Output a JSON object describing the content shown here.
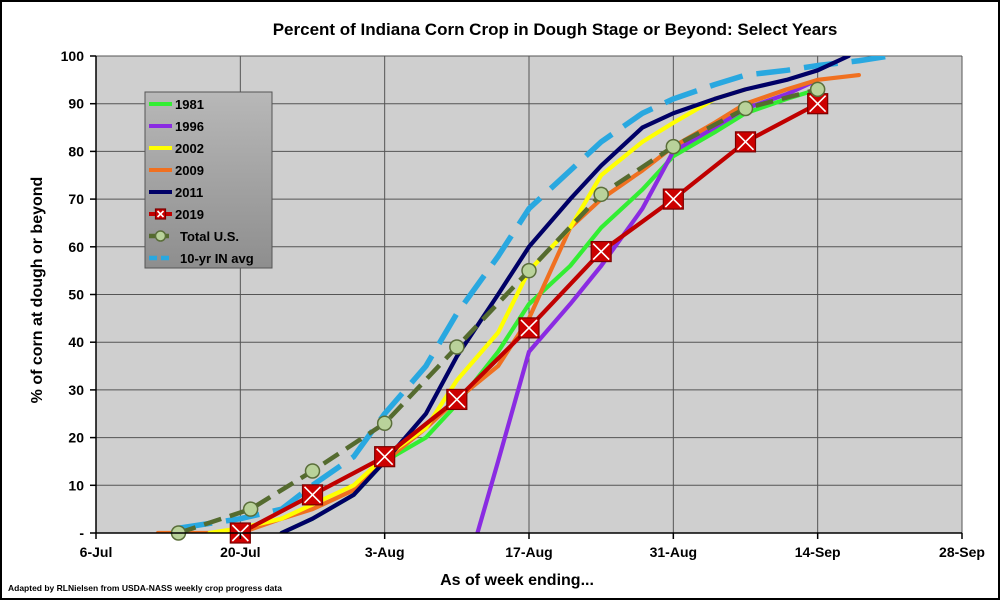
{
  "chart_data": {
    "type": "line",
    "title": "Percent of Indiana Corn Crop in Dough Stage or Beyond: Select Years",
    "xlabel": "As of week ending...",
    "ylabel": "% of corn at dough or beyond",
    "source_note": "Adapted by RLNielsen from USDA-NASS weekly crop progress data",
    "x_unit": "day of year",
    "x_ticks": [
      {
        "x": 187,
        "label": "6-Jul"
      },
      {
        "x": 201,
        "label": "20-Jul"
      },
      {
        "x": 215,
        "label": "3-Aug"
      },
      {
        "x": 229,
        "label": "17-Aug"
      },
      {
        "x": 243,
        "label": "31-Aug"
      },
      {
        "x": 257,
        "label": "14-Sep"
      },
      {
        "x": 271,
        "label": "28-Sep"
      }
    ],
    "xlim": [
      187,
      271
    ],
    "ylim": [
      0,
      100
    ],
    "y_ticks": [
      {
        "y": 0,
        "label": "-"
      },
      {
        "y": 10,
        "label": "10"
      },
      {
        "y": 20,
        "label": "20"
      },
      {
        "y": 30,
        "label": "30"
      },
      {
        "y": 40,
        "label": "40"
      },
      {
        "y": 50,
        "label": "50"
      },
      {
        "y": 60,
        "label": "60"
      },
      {
        "y": 70,
        "label": "70"
      },
      {
        "y": 80,
        "label": "80"
      },
      {
        "y": 90,
        "label": "90"
      },
      {
        "y": 100,
        "label": "100"
      }
    ],
    "grid": true,
    "legend_position": "upper-left inside plot",
    "series": [
      {
        "name": "1981",
        "color": "#33ee33",
        "style": "solid",
        "x": [
          205,
          208,
          212,
          215,
          219,
          222,
          226,
          229,
          233,
          236,
          240,
          243,
          247,
          250,
          254,
          257
        ],
        "y": [
          0,
          3,
          8,
          15,
          20,
          27,
          38,
          48,
          56,
          64,
          72,
          79,
          84,
          88,
          91,
          93
        ]
      },
      {
        "name": "1996",
        "color": "#8a2be2",
        "style": "solid",
        "x": [
          224,
          226,
          229,
          233,
          236,
          240,
          243,
          247,
          250,
          254,
          257
        ],
        "y": [
          0,
          15,
          38,
          48,
          56,
          68,
          80,
          85,
          89,
          92,
          95
        ]
      },
      {
        "name": "2002",
        "color": "#ffff00",
        "style": "solid",
        "x": [
          198,
          201,
          205,
          208,
          212,
          215,
          219,
          222,
          226,
          229,
          233,
          236,
          240,
          243,
          247,
          250
        ],
        "y": [
          0,
          1,
          3,
          6,
          10,
          16,
          22,
          32,
          42,
          55,
          64,
          75,
          82,
          86,
          91,
          93
        ]
      },
      {
        "name": "2009",
        "color": "#f07020",
        "style": "solid",
        "x": [
          193,
          201,
          205,
          208,
          212,
          215,
          219,
          222,
          226,
          229,
          233,
          236,
          240,
          243,
          247,
          250,
          254,
          257,
          261
        ],
        "y": [
          0,
          0,
          3,
          5,
          9,
          15,
          22,
          28,
          35,
          45,
          64,
          70,
          76,
          81,
          86,
          90,
          93,
          95,
          96
        ]
      },
      {
        "name": "2011",
        "color": "#000066",
        "style": "solid",
        "x": [
          205,
          208,
          212,
          215,
          219,
          222,
          226,
          229,
          233,
          236,
          240,
          243,
          247,
          250,
          254,
          257,
          260
        ],
        "y": [
          0,
          3,
          8,
          15,
          25,
          37,
          50,
          60,
          70,
          77,
          85,
          88,
          91,
          93,
          95,
          97,
          100
        ]
      },
      {
        "name": "2019",
        "color": "#c00000",
        "style": "solid",
        "marker": "x-box",
        "x": [
          201,
          208,
          215,
          222,
          229,
          236,
          243,
          250,
          257
        ],
        "y": [
          0,
          8,
          16,
          28,
          43,
          59,
          70,
          82,
          90
        ]
      },
      {
        "name": "Total U.S.",
        "color": "#556b2f",
        "style": "dashed",
        "marker": "circle",
        "x": [
          195,
          202,
          208,
          215,
          222,
          229,
          236,
          243,
          250,
          257
        ],
        "y": [
          0,
          5,
          13,
          23,
          39,
          55,
          71,
          81,
          89,
          93
        ]
      },
      {
        "name": "10-yr IN avg",
        "color": "#29a8e0",
        "style": "dashed",
        "x": [
          195,
          198,
          201,
          205,
          208,
          212,
          215,
          219,
          222,
          226,
          229,
          233,
          236,
          240,
          243,
          247,
          250,
          254,
          257,
          261,
          264
        ],
        "y": [
          1,
          2,
          3,
          5,
          10,
          16,
          25,
          35,
          46,
          58,
          68,
          76,
          82,
          88,
          91,
          94,
          96,
          97,
          98,
          99,
          100
        ]
      }
    ]
  }
}
